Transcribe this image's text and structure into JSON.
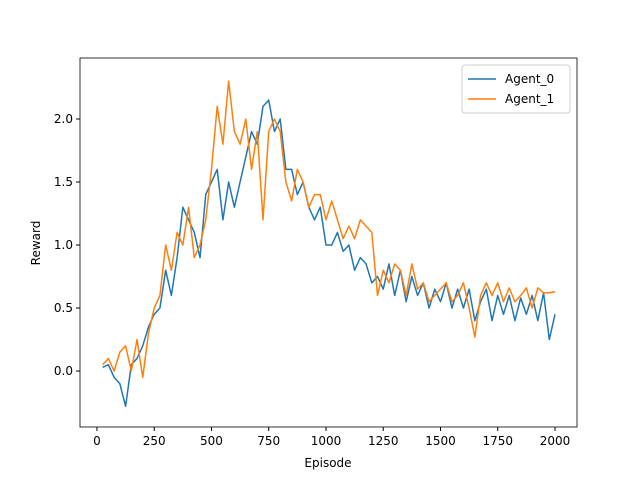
{
  "chart_data": {
    "type": "line",
    "x": [
      25,
      50,
      75,
      100,
      125,
      150,
      175,
      200,
      225,
      250,
      275,
      300,
      325,
      350,
      375,
      400,
      425,
      450,
      475,
      500,
      525,
      550,
      575,
      600,
      625,
      650,
      675,
      700,
      725,
      750,
      775,
      800,
      825,
      850,
      875,
      900,
      925,
      950,
      975,
      1000,
      1025,
      1050,
      1075,
      1100,
      1125,
      1150,
      1175,
      1200,
      1225,
      1250,
      1275,
      1300,
      1325,
      1350,
      1375,
      1400,
      1425,
      1450,
      1475,
      1500,
      1525,
      1550,
      1575,
      1600,
      1625,
      1650,
      1675,
      1700,
      1725,
      1750,
      1775,
      1800,
      1825,
      1850,
      1875,
      1900,
      1925,
      1950,
      1975,
      2000
    ],
    "series": [
      {
        "name": "Agent_0",
        "color": "#1f77b4",
        "values": [
          0.03,
          0.05,
          -0.05,
          -0.1,
          -0.28,
          0.05,
          0.1,
          0.2,
          0.35,
          0.45,
          0.5,
          0.8,
          0.6,
          0.9,
          1.3,
          1.2,
          1.1,
          0.9,
          1.4,
          1.5,
          1.6,
          1.2,
          1.5,
          1.3,
          1.5,
          1.7,
          1.9,
          1.8,
          2.1,
          2.15,
          1.9,
          2.0,
          1.6,
          1.6,
          1.4,
          1.5,
          1.3,
          1.2,
          1.3,
          1.0,
          1.0,
          1.1,
          0.95,
          1.0,
          0.8,
          0.9,
          0.85,
          0.7,
          0.75,
          0.65,
          0.85,
          0.6,
          0.8,
          0.55,
          0.75,
          0.6,
          0.7,
          0.5,
          0.65,
          0.55,
          0.7,
          0.5,
          0.65,
          0.5,
          0.65,
          0.4,
          0.55,
          0.65,
          0.4,
          0.6,
          0.45,
          0.6,
          0.4,
          0.58,
          0.45,
          0.6,
          0.4,
          0.62,
          0.25,
          0.45
        ]
      },
      {
        "name": "Agent_1",
        "color": "#ff7f0e",
        "values": [
          0.05,
          0.1,
          0.0,
          0.15,
          0.2,
          0.0,
          0.25,
          -0.05,
          0.3,
          0.5,
          0.6,
          1.0,
          0.8,
          1.1,
          1.0,
          1.3,
          0.9,
          1.0,
          1.2,
          1.6,
          2.1,
          1.8,
          2.3,
          1.9,
          1.8,
          2.0,
          1.6,
          1.9,
          1.2,
          1.9,
          2.0,
          1.9,
          1.5,
          1.35,
          1.6,
          1.5,
          1.3,
          1.4,
          1.4,
          1.2,
          1.35,
          1.2,
          1.05,
          1.15,
          1.05,
          1.2,
          1.15,
          1.1,
          0.6,
          0.8,
          0.7,
          0.85,
          0.8,
          0.6,
          0.85,
          0.65,
          0.7,
          0.55,
          0.6,
          0.65,
          0.7,
          0.55,
          0.6,
          0.7,
          0.5,
          0.27,
          0.6,
          0.7,
          0.6,
          0.7,
          0.55,
          0.66,
          0.55,
          0.6,
          0.66,
          0.5,
          0.66,
          0.62,
          0.62,
          0.63
        ]
      }
    ],
    "xlabel": "Episode",
    "ylabel": "Reward",
    "xlim": [
      -74,
      2096
    ],
    "ylim": [
      -0.444,
      2.484
    ],
    "xticks": [
      0,
      250,
      500,
      750,
      1000,
      1250,
      1500,
      1750,
      2000
    ],
    "yticks": [
      {
        "value": 0,
        "label": "0.0"
      },
      0.5,
      {
        "value": 1,
        "label": "1.0"
      },
      1.5,
      {
        "value": 2,
        "label": "2.0"
      }
    ],
    "legend": "upper right",
    "grid": false
  }
}
